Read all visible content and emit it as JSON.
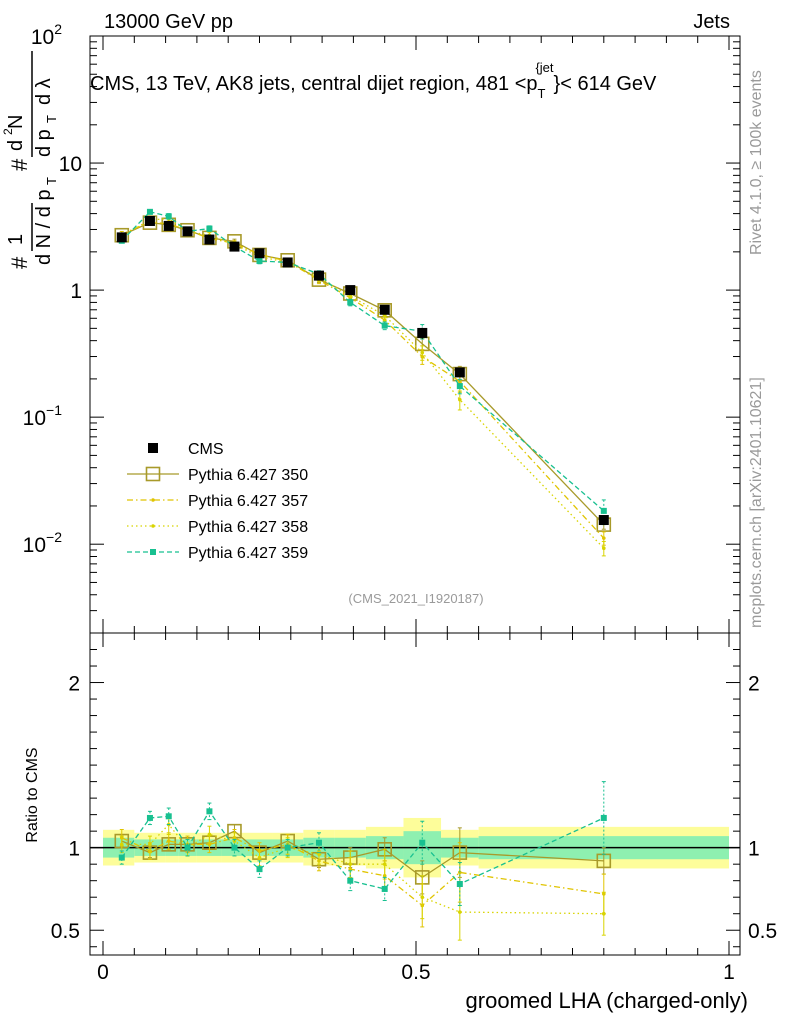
{
  "header": {
    "left": "13000 GeV pp",
    "right": "Jets"
  },
  "side": {
    "rivet": "Rivet 4.1.0, ≥ 100k events",
    "mcplots": "mcplots.cern.ch [arXiv:2401.10621]"
  },
  "colors": {
    "cms": "#000000",
    "p350": "#a89a2a",
    "p357": "#e0c400",
    "p358": "#d8d400",
    "p359": "#18c090"
  },
  "chart_data": {
    "type": "scatter",
    "title": "CMS, 13 TeV, AK8 jets, central dijet region, 481 < p_T^{jet} < 614 GeV",
    "title_parts": {
      "prefix": "CMS, 13 TeV, AK8 jets, central dijet region, 481 <p",
      "sub": "T",
      "sup": "{jet",
      "suffix": "}< 614 GeV"
    },
    "xlabel": "groomed LHA (charged-only)",
    "ylabel": "1/(dN/dp_T) d²N/(dp_T dλ)",
    "ratio_ylabel": "Ratio to CMS",
    "watermark": "(CMS_2021_I1920187)",
    "xlim": [
      0,
      1
    ],
    "ylim": [
      0.002,
      100
    ],
    "yscale": "log",
    "ratio_ylim": [
      0.35,
      2.3
    ],
    "x_ticks": [
      "0",
      "0.5",
      "1"
    ],
    "x_tick_values": [
      0,
      0.5,
      1
    ],
    "y_ticks": [
      {
        "v": 100,
        "base": "10",
        "exp": "2"
      },
      {
        "v": 10,
        "base": "10",
        "exp": ""
      },
      {
        "v": 1,
        "base": "1",
        "exp": ""
      },
      {
        "v": 0.1,
        "base": "10",
        "exp": "−1"
      },
      {
        "v": 0.01,
        "base": "10",
        "exp": "−2"
      }
    ],
    "ratio_ticks": [
      {
        "v": 0.5,
        "label": "0.5"
      },
      {
        "v": 1,
        "label": "1"
      },
      {
        "v": 2,
        "label": "2"
      }
    ],
    "bins": [
      {
        "lo": 0.0,
        "hi": 0.05
      },
      {
        "lo": 0.05,
        "hi": 0.1
      },
      {
        "lo": 0.1,
        "hi": 0.12
      },
      {
        "lo": 0.12,
        "hi": 0.15
      },
      {
        "lo": 0.15,
        "hi": 0.19
      },
      {
        "lo": 0.19,
        "hi": 0.23
      },
      {
        "lo": 0.23,
        "hi": 0.27
      },
      {
        "lo": 0.27,
        "hi": 0.32
      },
      {
        "lo": 0.32,
        "hi": 0.37
      },
      {
        "lo": 0.37,
        "hi": 0.42
      },
      {
        "lo": 0.42,
        "hi": 0.48
      },
      {
        "lo": 0.48,
        "hi": 0.54
      },
      {
        "lo": 0.54,
        "hi": 0.6
      },
      {
        "lo": 0.6,
        "hi": 1.0
      }
    ],
    "x": [
      0.03,
      0.075,
      0.105,
      0.135,
      0.17,
      0.21,
      0.25,
      0.295,
      0.345,
      0.395,
      0.45,
      0.51,
      0.57,
      0.8
    ],
    "data": {
      "name": "CMS",
      "values": [
        2.6,
        3.5,
        3.2,
        2.9,
        2.5,
        2.2,
        1.95,
        1.65,
        1.3,
        1.0,
        0.7,
        0.46,
        0.225,
        0.0155
      ],
      "rel_err": [
        0.06,
        0.05,
        0.05,
        0.05,
        0.05,
        0.05,
        0.05,
        0.05,
        0.06,
        0.06,
        0.07,
        0.1,
        0.06,
        0.07
      ]
    },
    "series": [
      {
        "name": "Pythia 6.427 350",
        "key": "p350",
        "marker": "open-square",
        "dash": "",
        "ratio": [
          1.04,
          0.97,
          1.02,
          1.02,
          1.03,
          1.1,
          0.97,
          1.04,
          0.93,
          0.94,
          0.99,
          0.82,
          0.97,
          0.92
        ],
        "ratio_err": [
          0.04,
          0.03,
          0.04,
          0.04,
          0.04,
          0.04,
          0.04,
          0.04,
          0.05,
          0.06,
          0.07,
          0.1,
          0.15,
          0.08
        ]
      },
      {
        "name": "Pythia 6.427 357",
        "key": "p357",
        "marker": "dot",
        "dash": "6,3,1.5,3",
        "ratio": [
          1.06,
          0.98,
          1.04,
          1.02,
          1.02,
          1.06,
          0.98,
          1.02,
          0.92,
          0.87,
          0.83,
          0.65,
          0.85,
          0.72
        ],
        "ratio_err": [
          0.05,
          0.05,
          0.05,
          0.05,
          0.05,
          0.05,
          0.05,
          0.06,
          0.06,
          0.07,
          0.09,
          0.13,
          0.18,
          0.12
        ]
      },
      {
        "name": "Pythia 6.427 358",
        "key": "p358",
        "marker": "dot",
        "dash": "1.5,3",
        "ratio": [
          1.02,
          1.02,
          1.14,
          1.0,
          1.08,
          1.04,
          0.94,
          1.0,
          0.96,
          0.9,
          0.9,
          0.7,
          0.61,
          0.6
        ],
        "ratio_err": [
          0.05,
          0.05,
          0.06,
          0.05,
          0.05,
          0.05,
          0.05,
          0.06,
          0.06,
          0.08,
          0.09,
          0.13,
          0.17,
          0.13
        ]
      },
      {
        "name": "Pythia 6.427 359",
        "key": "p359",
        "marker": "filled-square",
        "dash": "5,3",
        "ratio": [
          0.94,
          1.18,
          1.19,
          1.0,
          1.22,
          1.0,
          0.87,
          1.0,
          1.03,
          0.8,
          0.75,
          1.03,
          0.78,
          1.18
        ],
        "ratio_err": [
          0.04,
          0.04,
          0.05,
          0.05,
          0.05,
          0.05,
          0.05,
          0.05,
          0.06,
          0.06,
          0.07,
          0.13,
          0.13,
          0.22
        ]
      }
    ]
  }
}
